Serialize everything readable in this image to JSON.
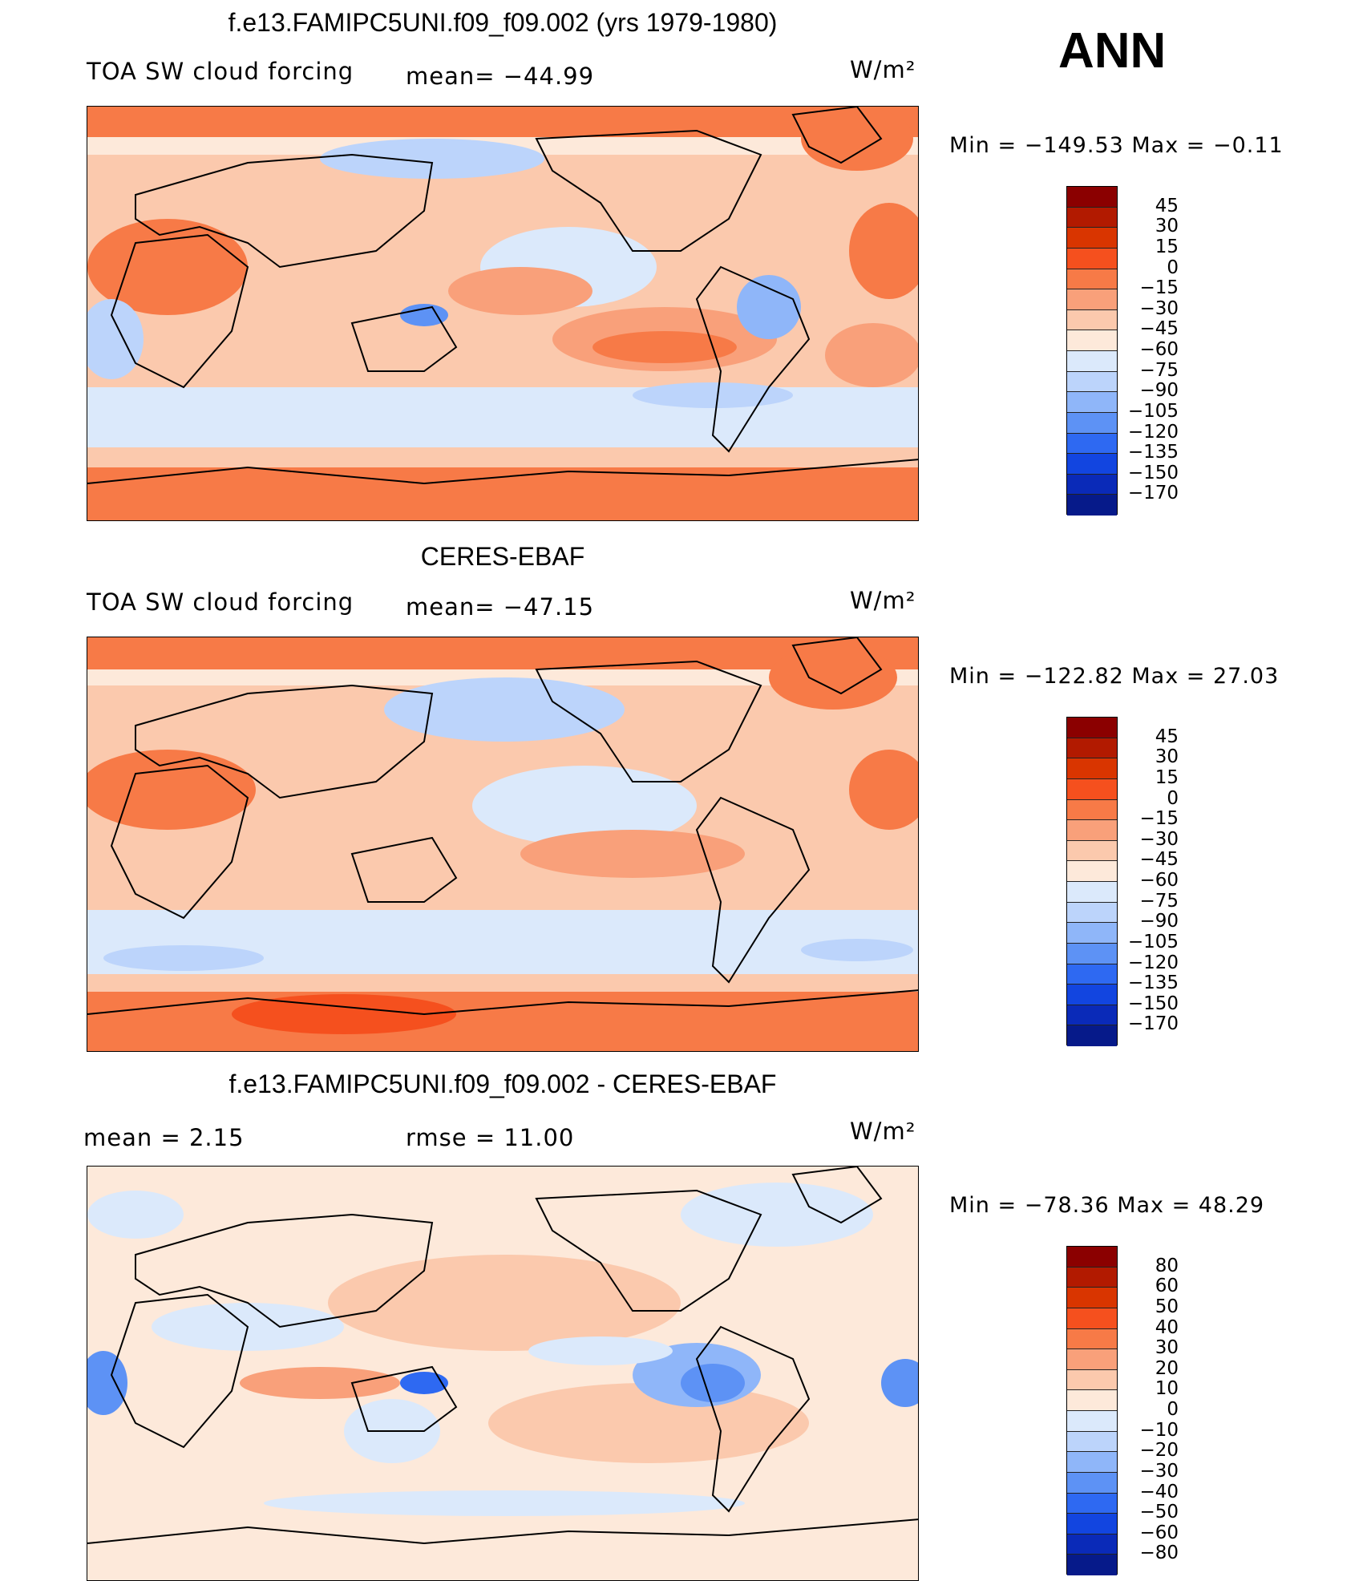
{
  "season": "ANN",
  "units": "W/m²",
  "panels": [
    {
      "title": "f.e13.FAMIPC5UNI.f09_f09.002 (yrs 1979-1980)",
      "left_label": "TOA SW cloud forcing",
      "center_label": "mean= −44.99",
      "min_max": "Min  =  −149.53  Max  =    −0.11",
      "levels": [
        "45",
        "30",
        "15",
        "0",
        "−15",
        "−30",
        "−45",
        "−60",
        "−75",
        "−90",
        "−105",
        "−120",
        "−135",
        "−150",
        "−170"
      ],
      "colors": [
        "#8b0000",
        "#b21a00",
        "#d93500",
        "#f5501e",
        "#f77a47",
        "#f9a07a",
        "#fbc9ad",
        "#fde9da",
        "#dbe9fb",
        "#bcd4fb",
        "#8fb6f9",
        "#5d92f5",
        "#2e69f2",
        "#1245e0",
        "#0a2ab8",
        "#061a8a"
      ]
    },
    {
      "title": "CERES-EBAF",
      "left_label": "TOA SW cloud forcing",
      "center_label": "mean= −47.15",
      "min_max": "Min  =  −122.82  Max  =    27.03",
      "levels": [
        "45",
        "30",
        "15",
        "0",
        "−15",
        "−30",
        "−45",
        "−60",
        "−75",
        "−90",
        "−105",
        "−120",
        "−135",
        "−150",
        "−170"
      ],
      "colors": [
        "#8b0000",
        "#b21a00",
        "#d93500",
        "#f5501e",
        "#f77a47",
        "#f9a07a",
        "#fbc9ad",
        "#fde9da",
        "#dbe9fb",
        "#bcd4fb",
        "#8fb6f9",
        "#5d92f5",
        "#2e69f2",
        "#1245e0",
        "#0a2ab8",
        "#061a8a"
      ]
    },
    {
      "title": "f.e13.FAMIPC5UNI.f09_f09.002 - CERES-EBAF",
      "left_label": "mean  =     2.15",
      "center_label": "rmse  =     11.00",
      "min_max": "Min  =  −78.36  Max  =    48.29",
      "levels": [
        "80",
        "60",
        "50",
        "40",
        "30",
        "20",
        "10",
        "0",
        "−10",
        "−20",
        "−30",
        "−40",
        "−50",
        "−60",
        "−80"
      ],
      "colors": [
        "#8b0000",
        "#b21a00",
        "#d93500",
        "#f5501e",
        "#f77a47",
        "#f9a07a",
        "#fbc9ad",
        "#fde9da",
        "#dbe9fb",
        "#bcd4fb",
        "#8fb6f9",
        "#5d92f5",
        "#2e69f2",
        "#1245e0",
        "#0a2ab8",
        "#061a8a"
      ]
    }
  ]
}
